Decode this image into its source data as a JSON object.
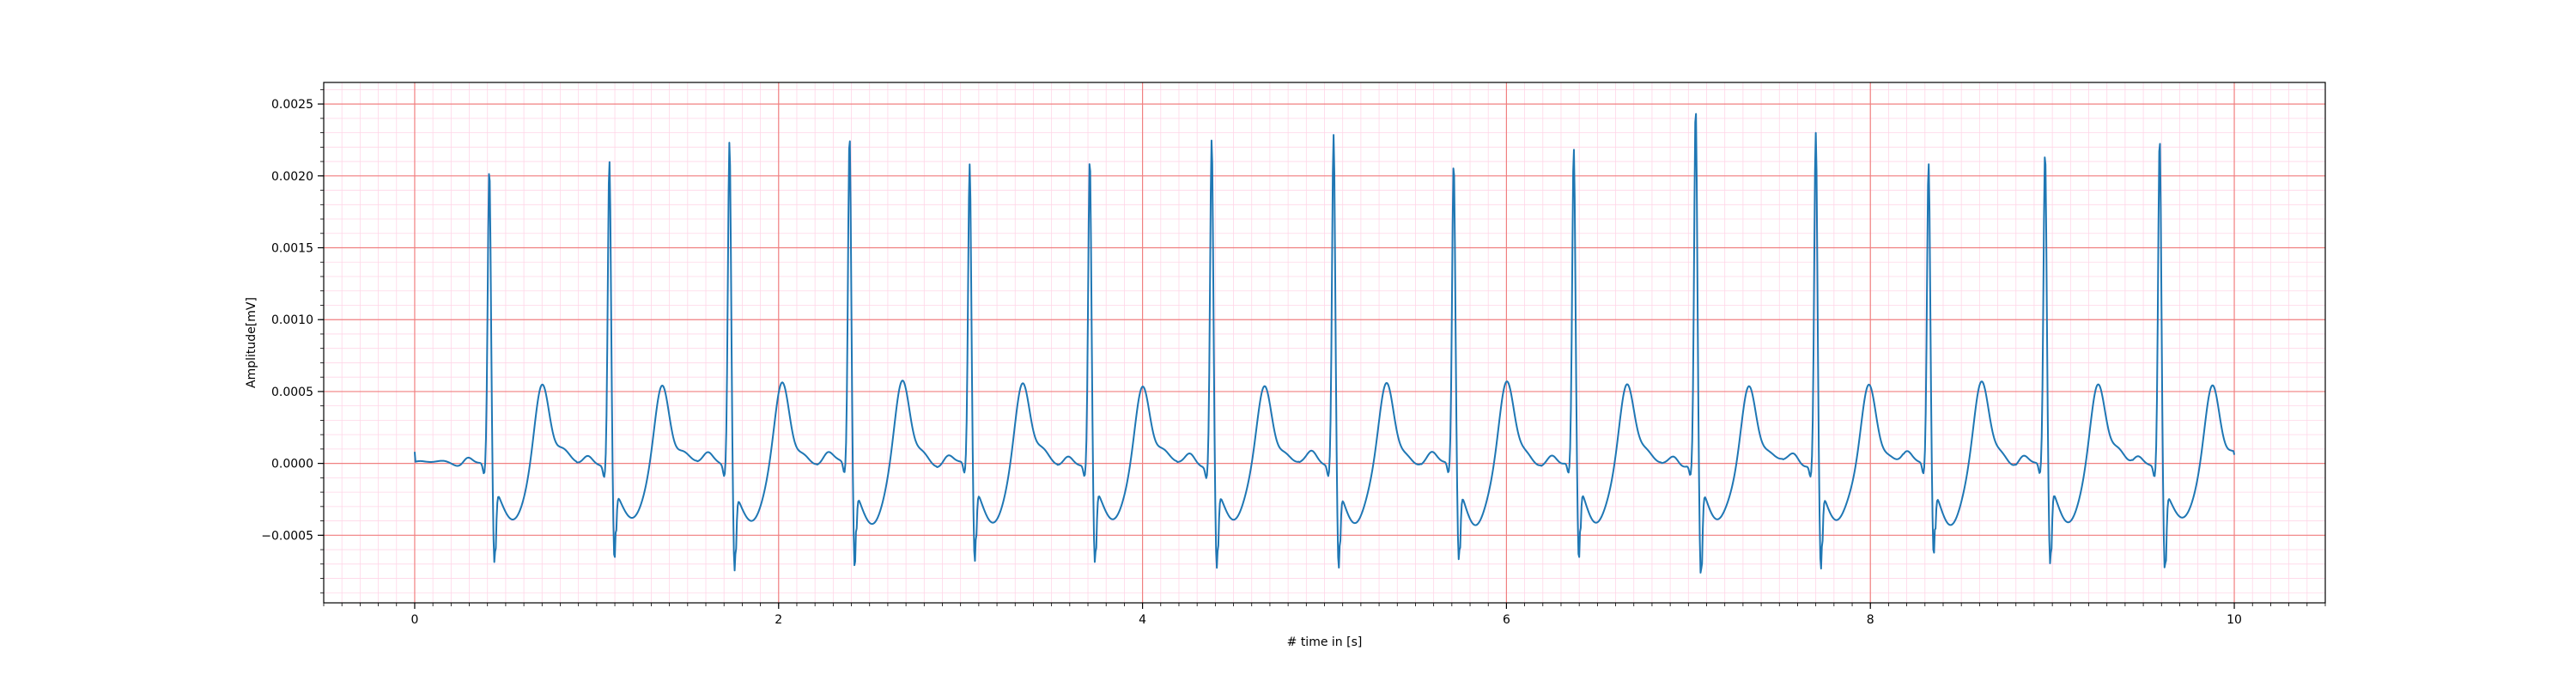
{
  "chart_data": {
    "type": "line",
    "title": "",
    "xlabel": "# time in [s]",
    "ylabel": "Amplitude[mV]",
    "xlim": [
      -0.5,
      10.5
    ],
    "ylim": [
      -0.00097,
      0.00265
    ],
    "x_ticks": [
      0,
      2,
      4,
      6,
      8,
      10
    ],
    "x_tick_labels": [
      "0",
      "2",
      "4",
      "6",
      "8",
      "10"
    ],
    "y_ticks": [
      -0.0005,
      0.0,
      0.0005,
      0.001,
      0.0015,
      0.002,
      0.0025
    ],
    "y_tick_labels": [
      "−0.0005",
      "0.0000",
      "0.0005",
      "0.0010",
      "0.0015",
      "0.0020",
      "0.0025"
    ],
    "grid": {
      "major": true,
      "minor": true,
      "major_x_step": 2,
      "minor_x_step": 0.1,
      "minor_y_step": 0.0001
    },
    "legend": "none",
    "colors": {
      "line": "#1f77b4",
      "major_grid": "#f08080",
      "minor_grid": "#ffd6e7",
      "axes": "#000000"
    },
    "series": [
      {
        "sampling_note": "beats listed as R-peak time (s), R amplitude (mV), S amplitude (mV)",
        "start": 0.0,
        "end": 10.0,
        "initial_value": 8e-05,
        "final_value": 6e-05,
        "beats": [
          {
            "t": 0.41,
            "r": 0.00205,
            "s": -0.00071
          },
          {
            "t": 1.07,
            "r": 0.00213,
            "s": -0.00067
          },
          {
            "t": 1.73,
            "r": 0.00227,
            "s": -0.00073
          },
          {
            "t": 2.39,
            "r": 0.00229,
            "s": -0.00073
          },
          {
            "t": 3.05,
            "r": 0.00207,
            "s": -0.00071
          },
          {
            "t": 3.71,
            "r": 0.00213,
            "s": -0.00071
          },
          {
            "t": 4.38,
            "r": 0.00228,
            "s": -0.00073
          },
          {
            "t": 5.05,
            "r": 0.0023,
            "s": -0.00073
          },
          {
            "t": 5.71,
            "r": 0.00208,
            "s": -0.00069
          },
          {
            "t": 6.37,
            "r": 0.00217,
            "s": -0.00071
          },
          {
            "t": 7.04,
            "r": 0.00247,
            "s": -0.00081
          },
          {
            "t": 7.7,
            "r": 0.00231,
            "s": -0.00074
          },
          {
            "t": 8.32,
            "r": 0.00209,
            "s": -0.00065
          },
          {
            "t": 8.96,
            "r": 0.00216,
            "s": -0.00073
          },
          {
            "t": 9.59,
            "r": 0.00229,
            "s": -0.00074
          }
        ]
      }
    ]
  }
}
